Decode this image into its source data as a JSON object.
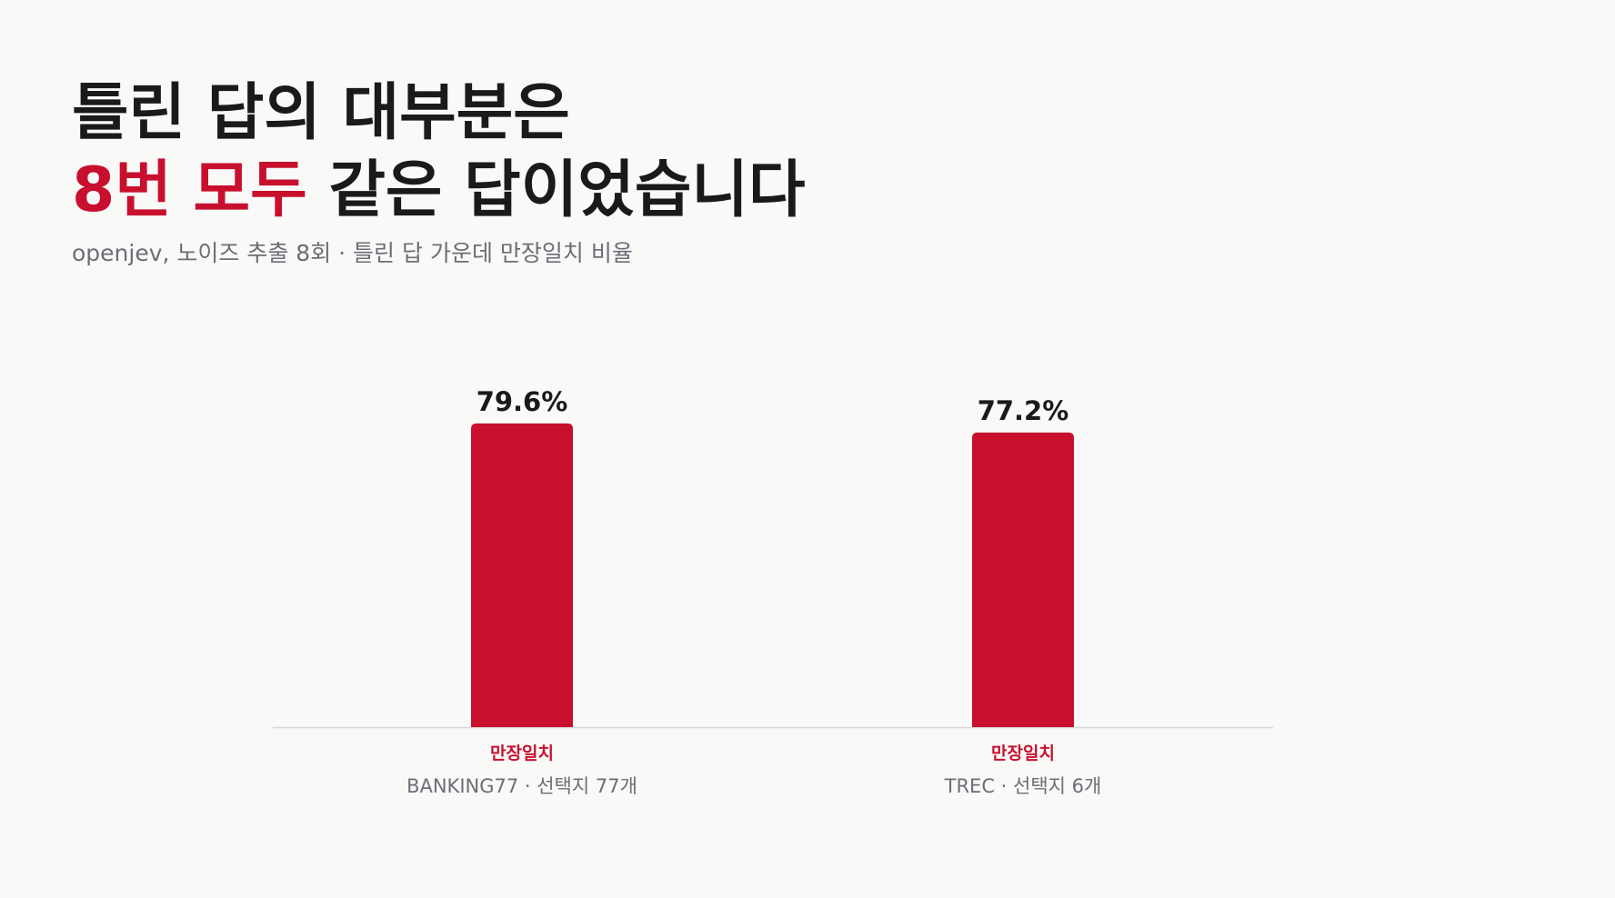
{
  "chart_data": {
    "type": "bar",
    "title": [
      "틀린 답의 대부분은",
      "8번 모두",
      "같은 답이었습니다"
    ],
    "subtitle": "openjev, 노이즈 추출 8회 · 틀린 답 가운데 만장일치 비율",
    "categories": [
      "BANKING77 · 선택지 77개",
      "TREC · 선택지 6개"
    ],
    "series": [
      {
        "name": "만장일치",
        "color": "#c8102e",
        "values": [
          79.6,
          77.2
        ],
        "value_labels": [
          "79.6%",
          "77.2%"
        ]
      }
    ]
  }
}
